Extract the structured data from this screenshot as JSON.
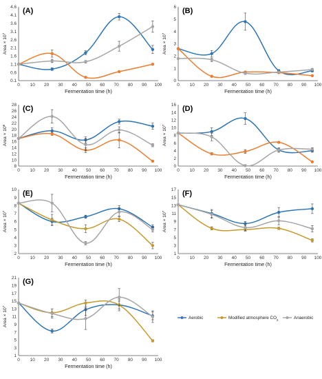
{
  "series": [
    {
      "name": "Aerobic",
      "color": "#3a74c4"
    },
    {
      "name": "Modified atmosphere CO",
      "sub": "2",
      "color": "#e8883a"
    },
    {
      "name": "Anaerobic",
      "color": "#a6a6a6"
    }
  ],
  "colors": {
    "olive": "#c49a2c"
  },
  "chart_data": [
    {
      "panel_label": "(A)",
      "type": "line",
      "xlabel": "Fermentation time (h)",
      "ylabel": "Area × 10",
      "ylabel_exp": "7",
      "xlim": [
        0,
        100
      ],
      "xticks": [
        0,
        10,
        20,
        30,
        40,
        50,
        60,
        70,
        80,
        90,
        100
      ],
      "ylim": [
        0.1,
        4.6
      ],
      "yticks": [
        0.1,
        0.6,
        1.1,
        1.6,
        2.1,
        2.6,
        3.1,
        3.6,
        4.1,
        4.6
      ],
      "series": [
        {
          "name": "Aerobic",
          "color": "#2e75b6",
          "x": [
            0,
            24,
            48,
            72,
            96
          ],
          "y": [
            1.1,
            0.8,
            1.8,
            4.0,
            2.0
          ],
          "err": [
            0,
            0.08,
            0.12,
            0.2,
            0.25
          ]
        },
        {
          "name": "Modified atmosphere CO2",
          "color": "#ed7d31",
          "x": [
            0,
            24,
            48,
            72,
            96
          ],
          "y": [
            1.1,
            1.75,
            0.3,
            0.65,
            1.1
          ],
          "err": [
            0,
            0.22,
            0.04,
            0.05,
            0.05
          ]
        },
        {
          "name": "Anaerobic",
          "color": "#a5a5a5",
          "x": [
            0,
            24,
            48,
            72,
            96
          ],
          "y": [
            1.1,
            1.3,
            1.25,
            2.2,
            3.4
          ],
          "err": [
            0,
            0.1,
            0.08,
            0.3,
            0.35
          ]
        }
      ]
    },
    {
      "panel_label": "(B)",
      "type": "line",
      "xlabel": "Fermentation time (h)",
      "ylabel": "Area × 10",
      "ylabel_exp": "7",
      "xlim": [
        0,
        100
      ],
      "xticks": [
        0,
        10,
        20,
        30,
        40,
        50,
        60,
        70,
        80,
        90,
        100
      ],
      "ylim": [
        0,
        6
      ],
      "yticks": [
        0,
        1,
        2,
        3,
        4,
        5,
        6
      ],
      "series": [
        {
          "name": "Aerobic",
          "color": "#2e75b6",
          "x": [
            0,
            24,
            48,
            72,
            96
          ],
          "y": [
            2.6,
            2.2,
            4.8,
            0.8,
            0.8
          ],
          "err": [
            0,
            0.25,
            0.7,
            0.1,
            0.1
          ]
        },
        {
          "name": "Modified atmosphere CO2",
          "color": "#ed7d31",
          "x": [
            0,
            24,
            48,
            72,
            96
          ],
          "y": [
            2.6,
            0.35,
            0.7,
            0.65,
            0.4
          ],
          "err": [
            0,
            0.05,
            0.05,
            0.05,
            0.05
          ]
        },
        {
          "name": "Anaerobic",
          "color": "#a5a5a5",
          "x": [
            0,
            24,
            48,
            72,
            96
          ],
          "y": [
            1.8,
            1.7,
            0.6,
            0.7,
            0.9
          ],
          "err": [
            0,
            0.15,
            0.1,
            0.1,
            0.1
          ]
        }
      ]
    },
    {
      "panel_label": "(C)",
      "type": "line",
      "xlabel": "Fermentation time (h)",
      "ylabel": "Area × 10",
      "ylabel_exp": "6",
      "xlim": [
        0,
        100
      ],
      "xticks": [
        0,
        10,
        20,
        30,
        40,
        50,
        60,
        70,
        80,
        90,
        100
      ],
      "ylim": [
        8,
        28
      ],
      "yticks": [
        8,
        10,
        12,
        14,
        16,
        18,
        20,
        22,
        24,
        26,
        28
      ],
      "series": [
        {
          "name": "Aerobic",
          "color": "#2e75b6",
          "x": [
            0,
            24,
            48,
            72,
            96
          ],
          "y": [
            17,
            19.5,
            16.5,
            22.5,
            21
          ],
          "err": [
            0,
            1,
            1,
            0.8,
            1
          ]
        },
        {
          "name": "Modified atmosphere CO2",
          "color": "#ed7d31",
          "x": [
            0,
            24,
            48,
            72,
            96
          ],
          "y": [
            17,
            18.5,
            13.2,
            16.5,
            9.6
          ],
          "err": [
            0,
            0.5,
            0.8,
            2.5,
            0.3
          ]
        },
        {
          "name": "Anaerobic",
          "color": "#a5a5a5",
          "x": [
            0,
            24,
            48,
            72,
            96
          ],
          "y": [
            17,
            24.2,
            15,
            19.8,
            14.8
          ],
          "err": [
            0,
            2.2,
            2,
            1,
            0.5
          ]
        }
      ]
    },
    {
      "panel_label": "(D)",
      "type": "line",
      "xlabel": "Fermentation time (h)",
      "ylabel": "Area × 10",
      "ylabel_exp": "7",
      "xlim": [
        0,
        100
      ],
      "xticks": [
        0,
        10,
        20,
        30,
        40,
        50,
        60,
        70,
        80,
        90,
        100
      ],
      "ylim": [
        0,
        16
      ],
      "yticks": [
        0,
        2,
        4,
        6,
        8,
        10,
        12,
        14,
        16
      ],
      "series": [
        {
          "name": "Aerobic",
          "color": "#2e75b6",
          "x": [
            0,
            24,
            48,
            72,
            96
          ],
          "y": [
            8.6,
            9.0,
            12.4,
            4.2,
            4.0
          ],
          "err": [
            0,
            1,
            1.5,
            0.4,
            0.4
          ]
        },
        {
          "name": "Modified atmosphere CO2",
          "color": "#ed7d31",
          "x": [
            0,
            24,
            48,
            72,
            96
          ],
          "y": [
            8.6,
            3.2,
            3.8,
            6.2,
            1.1
          ],
          "err": [
            0,
            0.3,
            0.5,
            0.2,
            0.1
          ]
        },
        {
          "name": "Anaerobic",
          "color": "#a5a5a5",
          "x": [
            0,
            24,
            48,
            72,
            96
          ],
          "y": [
            8.6,
            7.6,
            0.1,
            4.2,
            4.4
          ],
          "err": [
            0,
            1,
            0.3,
            0.6,
            0.4
          ]
        }
      ]
    },
    {
      "panel_label": "(E)",
      "type": "line",
      "xlabel": "Fermentation time (h)",
      "ylabel": "Area × 10",
      "ylabel_exp": "7",
      "xlim": [
        0,
        100
      ],
      "xticks": [
        0,
        10,
        20,
        30,
        40,
        50,
        60,
        70,
        80,
        90,
        100
      ],
      "ylim": [
        2,
        10
      ],
      "yticks": [
        2,
        3,
        4,
        5,
        6,
        7,
        8,
        9,
        10
      ],
      "series": [
        {
          "name": "Aerobic",
          "color": "#2e75b6",
          "x": [
            0,
            24,
            48,
            72,
            96
          ],
          "y": [
            8.3,
            6.0,
            6.6,
            7.6,
            5.3
          ],
          "err": [
            0,
            0.4,
            0.2,
            0.4,
            0.3
          ]
        },
        {
          "name": "Modified atmosphere CO2",
          "color": "#c49a2c",
          "x": [
            0,
            24,
            48,
            72,
            96
          ],
          "y": [
            8.3,
            6.2,
            5.1,
            6.3,
            3.0
          ],
          "err": [
            0,
            0.7,
            0.5,
            0.3,
            0.4
          ]
        },
        {
          "name": "Anaerobic",
          "color": "#a5a5a5",
          "x": [
            0,
            24,
            48,
            72,
            96
          ],
          "y": [
            8.3,
            8.3,
            3.3,
            7.2,
            5.0
          ],
          "err": [
            0,
            1.1,
            0.2,
            0.5,
            0.3
          ]
        }
      ]
    },
    {
      "panel_label": "(F)",
      "type": "line",
      "xlabel": "Fermentation time (h)",
      "ylabel": "Area × 10",
      "ylabel_exp": "7",
      "xlim": [
        0,
        100
      ],
      "xticks": [
        0,
        10,
        20,
        30,
        40,
        50,
        60,
        70,
        80,
        90,
        100
      ],
      "ylim": [
        1,
        17
      ],
      "yticks": [
        1,
        3,
        5,
        7,
        9,
        11,
        13,
        15,
        17
      ],
      "series": [
        {
          "name": "Aerobic",
          "color": "#2e75b6",
          "x": [
            0,
            24,
            48,
            72,
            96
          ],
          "y": [
            13.2,
            11.0,
            8.5,
            11.3,
            12.2
          ],
          "err": [
            0,
            1,
            0.5,
            1.2,
            1.2
          ]
        },
        {
          "name": "Modified atmosphere CO2",
          "color": "#c49a2c",
          "x": [
            0,
            24,
            48,
            72,
            96
          ],
          "y": [
            13.2,
            7.3,
            7.0,
            7.3,
            4.3
          ],
          "err": [
            0,
            0.4,
            0.4,
            0.3,
            0.4
          ]
        },
        {
          "name": "Anaerobic",
          "color": "#a5a5a5",
          "x": [
            0,
            24,
            48,
            72,
            96
          ],
          "y": [
            13.2,
            10.8,
            7.5,
            9.2,
            7.2
          ],
          "err": [
            0,
            1,
            0.8,
            1,
            0.8
          ]
        }
      ]
    },
    {
      "panel_label": "(G)",
      "type": "line",
      "xlabel": "Fermentation time (h)",
      "ylabel": "Area × 10",
      "ylabel_exp": "7",
      "xlim": [
        0,
        100
      ],
      "xticks": [
        0,
        10,
        20,
        30,
        40,
        50,
        60,
        70,
        80,
        90,
        100
      ],
      "ylim": [
        1,
        21
      ],
      "yticks": [
        1,
        3,
        5,
        7,
        9,
        11,
        13,
        15,
        17,
        19,
        21
      ],
      "series": [
        {
          "name": "Aerobic",
          "color": "#2e75b6",
          "x": [
            0,
            24,
            48,
            72,
            96
          ],
          "y": [
            14.5,
            7.3,
            12.8,
            14.0,
            11.2
          ],
          "err": [
            0,
            0.5,
            1.5,
            1.5,
            1
          ]
        },
        {
          "name": "Modified atmosphere CO2",
          "color": "#c49a2c",
          "x": [
            0,
            24,
            48,
            72,
            96
          ],
          "y": [
            14.5,
            12.0,
            14.5,
            14.0,
            4.8
          ],
          "err": [
            0,
            1,
            0.8,
            1,
            0.3
          ]
        },
        {
          "name": "Anaerobic",
          "color": "#a5a5a5",
          "x": [
            0,
            24,
            48,
            72,
            96
          ],
          "y": [
            14.5,
            11.8,
            10.5,
            16.0,
            11.0
          ],
          "err": [
            0,
            1.2,
            2.8,
            2.2,
            1.5
          ]
        }
      ]
    }
  ]
}
